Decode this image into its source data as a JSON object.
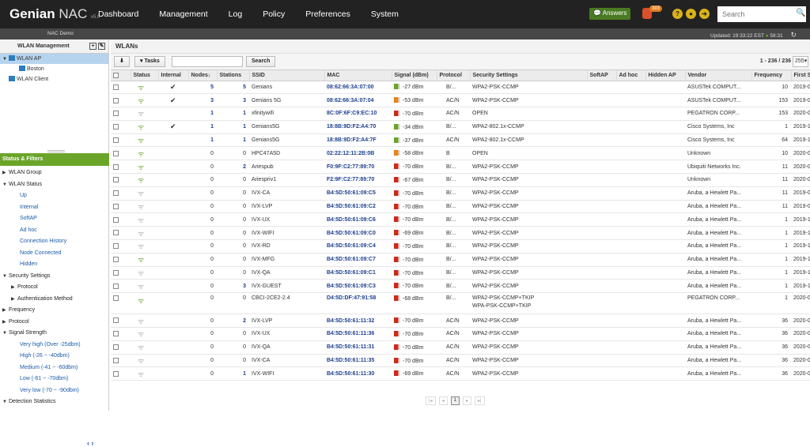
{
  "app": {
    "brand": "Genian",
    "brand_sub": "NAC",
    "version": "v5.0",
    "nav": [
      "Dashboard",
      "Management",
      "Log",
      "Policy",
      "Preferences",
      "System"
    ],
    "answers_label": "Answers",
    "alert_count": "383",
    "search_placeholder": "Search"
  },
  "subbar": {
    "org": "NAC Demo",
    "updated": "Updated: 19:33:22 EST",
    "timer": "58:31"
  },
  "left": {
    "title": "WLAN Management",
    "tree": [
      {
        "label": "WLAN AP",
        "sel": true,
        "indent": 1
      },
      {
        "label": "Boston",
        "sel": false,
        "indent": 2
      },
      {
        "label": "WLAN Client",
        "sel": false,
        "indent": 1
      }
    ],
    "filters_title": "Status & Filters",
    "filters": [
      {
        "label": "WLAN Group",
        "lvl": 0,
        "arrow": "▶"
      },
      {
        "label": "WLAN Status",
        "lvl": 0,
        "arrow": "▼"
      },
      {
        "label": "Up",
        "lvl": 2,
        "arrow": ""
      },
      {
        "label": "Internal",
        "lvl": 2,
        "arrow": ""
      },
      {
        "label": "SoftAP",
        "lvl": 2,
        "arrow": ""
      },
      {
        "label": "Ad hoc",
        "lvl": 2,
        "arrow": ""
      },
      {
        "label": "Connection History",
        "lvl": 2,
        "arrow": ""
      },
      {
        "label": "Node Connected",
        "lvl": 2,
        "arrow": ""
      },
      {
        "label": "Hidden",
        "lvl": 2,
        "arrow": ""
      },
      {
        "label": "Security Settings",
        "lvl": 0,
        "arrow": "▼"
      },
      {
        "label": "Protocol",
        "lvl": 1,
        "arrow": "▶"
      },
      {
        "label": "Authentication Method",
        "lvl": 1,
        "arrow": "▶"
      },
      {
        "label": "Frequency",
        "lvl": 0,
        "arrow": "▶"
      },
      {
        "label": "Protocol",
        "lvl": 0,
        "arrow": "▶"
      },
      {
        "label": "Signal Strength",
        "lvl": 0,
        "arrow": "▼"
      },
      {
        "label": "Very high (Over -25dbm)",
        "lvl": 2,
        "arrow": ""
      },
      {
        "label": "High (-26 ~ -40dbm)",
        "lvl": 2,
        "arrow": ""
      },
      {
        "label": "Medium (-41 ~ -60dbm)",
        "lvl": 2,
        "arrow": ""
      },
      {
        "label": "Low (-61 ~ -70dbm)",
        "lvl": 2,
        "arrow": ""
      },
      {
        "label": "Very low (-70 ~ -90dbm)",
        "lvl": 2,
        "arrow": ""
      },
      {
        "label": "Detection Statistics",
        "lvl": 0,
        "arrow": "▼"
      }
    ]
  },
  "main": {
    "title": "WLANs",
    "tasks_label": "Tasks",
    "search_label": "Search",
    "count": "1 - 236 / 236",
    "per_page": "255",
    "columns": [
      "Status",
      "Internal",
      "Nodes↓",
      "Stations",
      "SSID",
      "MAC",
      "Signal (dBm)",
      "Protocol",
      "Security Settings",
      "SoftAP",
      "Ad hoc",
      "Hidden AP",
      "Vendor",
      "Frequency",
      "First Se"
    ],
    "rows": [
      {
        "on": true,
        "int": true,
        "nodes": "5",
        "st": "5",
        "ssid": "Genians",
        "mac": "08:62:66:3A:07:00",
        "sig": "-27 dBm",
        "lvl": "g",
        "proto": "B/...",
        "sec": "WPA2-PSK-CCMP",
        "vendor": "ASUSTek COMPUT...",
        "freq": "10",
        "first": "2019-09"
      },
      {
        "on": true,
        "int": true,
        "nodes": "3",
        "st": "3",
        "ssid": "Genians 5G",
        "mac": "08:62:66:3A:07:04",
        "sig": "-53 dBm",
        "lvl": "o",
        "proto": "AC/N",
        "sec": "WPA2-PSK-CCMP",
        "vendor": "ASUSTek COMPUT...",
        "freq": "153",
        "first": "2019-09"
      },
      {
        "on": false,
        "int": false,
        "nodes": "1",
        "st": "1",
        "ssid": "xfinitywifi",
        "mac": "8C:0F:6F:C9:EC:10",
        "sig": "-70 dBm",
        "lvl": "r",
        "proto": "AC/N",
        "sec": "OPEN",
        "vendor": "PEGATRON CORP...",
        "freq": "153",
        "first": "2020-02"
      },
      {
        "on": true,
        "int": true,
        "nodes": "1",
        "st": "1",
        "ssid": "Genians5G",
        "mac": "18:8B:9D:F2:A4:70",
        "sig": "-34 dBm",
        "lvl": "g",
        "proto": "B/...",
        "sec": "WPA2-802.1x-CCMP",
        "vendor": "Cisco Systems, Inc",
        "freq": "1",
        "first": "2019-11"
      },
      {
        "on": true,
        "int": false,
        "nodes": "1",
        "st": "1",
        "ssid": "Genians5G",
        "mac": "18:8B:9D:F2:A4:7F",
        "sig": "-37 dBm",
        "lvl": "g",
        "proto": "AC/N",
        "sec": "WPA2-802.1x-CCMP",
        "vendor": "Cisco Systems, Inc",
        "freq": "64",
        "first": "2019-11"
      },
      {
        "on": true,
        "int": false,
        "nodes": "0",
        "st": "0",
        "ssid": "HPC47A5D",
        "mac": "02:22:12:11:2B:0B",
        "sig": "-58 dBm",
        "lvl": "o",
        "proto": "B",
        "sec": "OPEN",
        "vendor": "Unknown",
        "freq": "10",
        "first": "2020-02"
      },
      {
        "on": true,
        "int": false,
        "nodes": "0",
        "st": "2",
        "ssid": "Ariespub",
        "mac": "F0:9F:C2:77:89:70",
        "sig": "-70 dBm",
        "lvl": "r",
        "proto": "B/...",
        "sec": "WPA2-PSK-CCMP",
        "vendor": "Ubiquiti Networks Inc.",
        "freq": "11",
        "first": "2020-01"
      },
      {
        "on": true,
        "int": false,
        "nodes": "0",
        "st": "0",
        "ssid": "Ariespriv1",
        "mac": "F2:9F:C2:77:89:70",
        "sig": "-67 dBm",
        "lvl": "r",
        "proto": "B/...",
        "sec": "WPA2-PSK-CCMP",
        "vendor": "Unknown",
        "freq": "11",
        "first": "2020-01"
      },
      {
        "on": false,
        "int": false,
        "nodes": "0",
        "st": "0",
        "ssid": "IVX-CA",
        "mac": "B4:5D:50:61:09:C5",
        "sig": "-70 dBm",
        "lvl": "r",
        "proto": "B/...",
        "sec": "WPA2-PSK-CCMP",
        "vendor": "Aruba, a Hewlett Pa...",
        "freq": "11",
        "first": "2019-09"
      },
      {
        "on": false,
        "int": false,
        "nodes": "0",
        "st": "0",
        "ssid": "IVX-LVP",
        "mac": "B4:5D:50:61:09:C2",
        "sig": "-70 dBm",
        "lvl": "r",
        "proto": "B/...",
        "sec": "WPA2-PSK-CCMP",
        "vendor": "Aruba, a Hewlett Pa...",
        "freq": "11",
        "first": "2019-09"
      },
      {
        "on": false,
        "int": false,
        "nodes": "0",
        "st": "0",
        "ssid": "IVX-UX",
        "mac": "B4:5D:50:61:09:C6",
        "sig": "-70 dBm",
        "lvl": "r",
        "proto": "B/...",
        "sec": "WPA2-PSK-CCMP",
        "vendor": "Aruba, a Hewlett Pa...",
        "freq": "1",
        "first": "2019-10"
      },
      {
        "on": false,
        "int": false,
        "nodes": "0",
        "st": "0",
        "ssid": "IVX-WIFI",
        "mac": "B4:5D:50:61:09:C0",
        "sig": "-69 dBm",
        "lvl": "r",
        "proto": "B/...",
        "sec": "WPA2-PSK-CCMP",
        "vendor": "Aruba, a Hewlett Pa...",
        "freq": "1",
        "first": "2019-10"
      },
      {
        "on": false,
        "int": false,
        "nodes": "0",
        "st": "0",
        "ssid": "IVX-RD",
        "mac": "B4:5D:50:61:09:C4",
        "sig": "-70 dBm",
        "lvl": "r",
        "proto": "B/...",
        "sec": "WPA2-PSK-CCMP",
        "vendor": "Aruba, a Hewlett Pa...",
        "freq": "1",
        "first": "2019-10"
      },
      {
        "on": true,
        "int": false,
        "nodes": "0",
        "st": "0",
        "ssid": "IVX-MFG",
        "mac": "B4:5D:50:61:09:C7",
        "sig": "-70 dBm",
        "lvl": "r",
        "proto": "B/...",
        "sec": "WPA2-PSK-CCMP",
        "vendor": "Aruba, a Hewlett Pa...",
        "freq": "1",
        "first": "2019-10"
      },
      {
        "on": false,
        "int": false,
        "nodes": "0",
        "st": "0",
        "ssid": "IVX-QA",
        "mac": "B4:5D:50:61:09:C1",
        "sig": "-70 dBm",
        "lvl": "r",
        "proto": "B/...",
        "sec": "WPA2-PSK-CCMP",
        "vendor": "Aruba, a Hewlett Pa...",
        "freq": "1",
        "first": "2019-10"
      },
      {
        "on": false,
        "int": false,
        "nodes": "0",
        "st": "3",
        "ssid": "IVX-GUEST",
        "mac": "B4:5D:50:61:09:C3",
        "sig": "-70 dBm",
        "lvl": "r",
        "proto": "B/...",
        "sec": "WPA2-PSK-CCMP",
        "vendor": "Aruba, a Hewlett Pa...",
        "freq": "1",
        "first": "2019-10"
      },
      {
        "on": true,
        "int": false,
        "nodes": "0",
        "st": "0",
        "ssid": "CBCI-2CE2-2.4",
        "mac": "D4:5D:DF:47:91:58",
        "sig": "-68 dBm",
        "lvl": "r",
        "proto": "B/...",
        "sec": "WPA2-PSK-CCMP+TKIP",
        "sec2": "WPA-PSK-CCMP+TKIP",
        "vendor": "PEGATRON CORP...",
        "freq": "1",
        "first": "2020-01"
      },
      {
        "on": false,
        "int": false,
        "nodes": "0",
        "st": "2",
        "ssid": "IVX-LVP",
        "mac": "B4:5D:50:61:11:32",
        "sig": "-70 dBm",
        "lvl": "r",
        "proto": "AC/N",
        "sec": "WPA2-PSK-CCMP",
        "vendor": "Aruba, a Hewlett Pa...",
        "freq": "36",
        "first": "2020-01"
      },
      {
        "on": false,
        "int": false,
        "nodes": "0",
        "st": "0",
        "ssid": "IVX-UX",
        "mac": "B4:5D:50:61:11:36",
        "sig": "-70 dBm",
        "lvl": "r",
        "proto": "AC/N",
        "sec": "WPA2-PSK-CCMP",
        "vendor": "Aruba, a Hewlett Pa...",
        "freq": "36",
        "first": "2020-02"
      },
      {
        "on": false,
        "int": false,
        "nodes": "0",
        "st": "0",
        "ssid": "IVX-QA",
        "mac": "B4:5D:50:61:11:31",
        "sig": "-70 dBm",
        "lvl": "r",
        "proto": "AC/N",
        "sec": "WPA2-PSK-CCMP",
        "vendor": "Aruba, a Hewlett Pa...",
        "freq": "36",
        "first": "2020-02"
      },
      {
        "on": false,
        "int": false,
        "nodes": "0",
        "st": "0",
        "ssid": "IVX-CA",
        "mac": "B4:5D:50:61:11:35",
        "sig": "-70 dBm",
        "lvl": "r",
        "proto": "AC/N",
        "sec": "WPA2-PSK-CCMP",
        "vendor": "Aruba, a Hewlett Pa...",
        "freq": "36",
        "first": "2020-02"
      },
      {
        "on": false,
        "int": false,
        "nodes": "0",
        "st": "1",
        "ssid": "IVX-WIFI",
        "mac": "B4:5D:50:61:11:30",
        "sig": "-69 dBm",
        "lvl": "r",
        "proto": "AC/N",
        "sec": "WPA2-PSK-CCMP",
        "vendor": "Aruba, a Hewlett Pa...",
        "freq": "36",
        "first": "2020-02"
      }
    ],
    "page": "1"
  },
  "colors": {
    "green": "#6aa52a",
    "orange": "#e8821a",
    "red": "#cc2a1c",
    "link": "#1c3f8f"
  }
}
